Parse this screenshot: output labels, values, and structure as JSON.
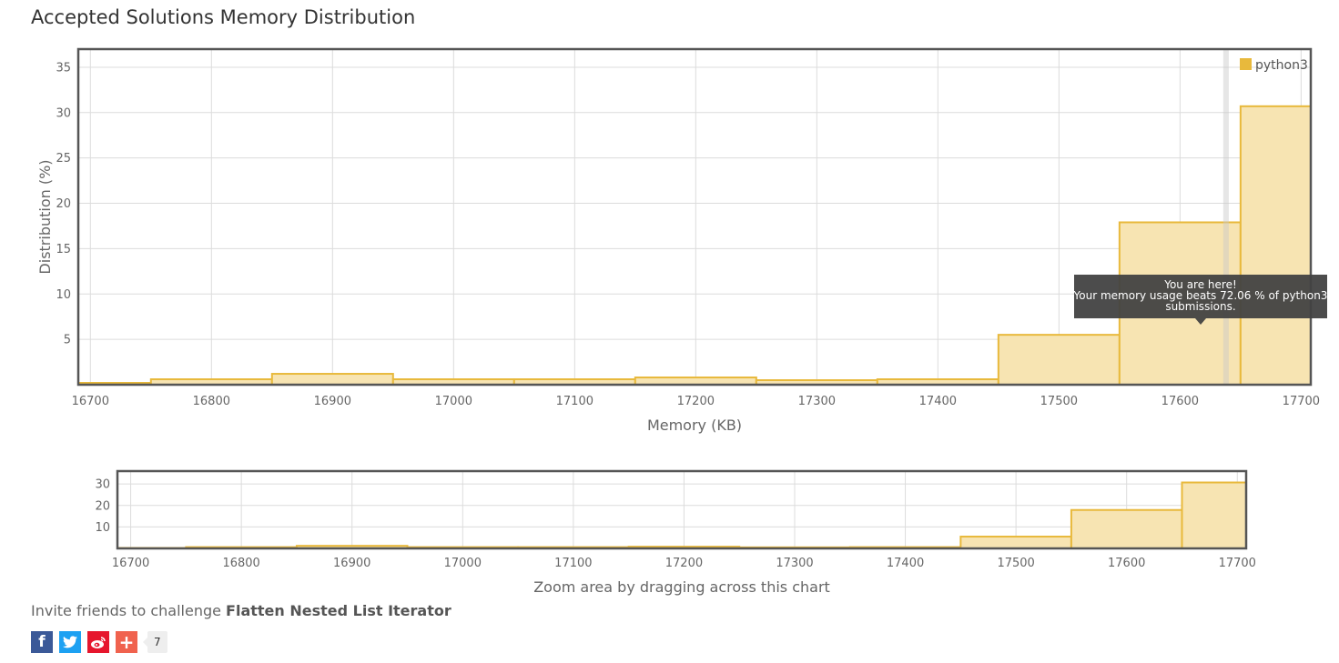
{
  "page": {
    "title": "Accepted Solutions Memory Distribution",
    "invite_prefix": "Invite friends to challenge ",
    "invite_problem": "Flatten Nested List Iterator",
    "share_count": "7",
    "share_buttons": [
      {
        "name": "facebook",
        "icon": "f",
        "color": "#3b5998"
      },
      {
        "name": "twitter",
        "icon": "twitter-bird",
        "color": "#1da1f2"
      },
      {
        "name": "weibo",
        "icon": "weibo-eye",
        "color": "#e6162d"
      },
      {
        "name": "more",
        "icon": "+",
        "color": "#f0624e"
      }
    ]
  },
  "chart_data": [
    {
      "type": "bar",
      "xlabel": "Memory (KB)",
      "ylabel": "Distribution (%)",
      "x_ticks": [
        16700,
        16800,
        16900,
        17000,
        17100,
        17200,
        17300,
        17400,
        17500,
        17600,
        17700
      ],
      "y_ticks": [
        5,
        10,
        15,
        20,
        25,
        30,
        35
      ],
      "xlim": [
        16690,
        17708
      ],
      "ylim": [
        0,
        37
      ],
      "grid": true,
      "legend_position": "top-right",
      "series": [
        {
          "name": "python3",
          "color": "#e8b93c",
          "fill": "#f7e4b2",
          "bins": [
            {
              "x0": 16650,
              "x1": 16750,
              "value": 0.2
            },
            {
              "x0": 16750,
              "x1": 16850,
              "value": 0.6
            },
            {
              "x0": 16850,
              "x1": 16950,
              "value": 1.2
            },
            {
              "x0": 16950,
              "x1": 17050,
              "value": 0.6
            },
            {
              "x0": 17050,
              "x1": 17150,
              "value": 0.6
            },
            {
              "x0": 17150,
              "x1": 17250,
              "value": 0.8
            },
            {
              "x0": 17250,
              "x1": 17350,
              "value": 0.5
            },
            {
              "x0": 17350,
              "x1": 17450,
              "value": 0.6
            },
            {
              "x0": 17450,
              "x1": 17550,
              "value": 5.5
            },
            {
              "x0": 17550,
              "x1": 17650,
              "value": 17.9
            },
            {
              "x0": 17650,
              "x1": 17750,
              "value": 30.7
            }
          ]
        }
      ],
      "marker_x": 17638,
      "tooltip": {
        "line1": "You are here!",
        "line2": "Your memory usage beats 72.06 % of python3",
        "line3": "submissions."
      }
    },
    {
      "type": "bar",
      "role": "zoom-navigator",
      "xlabel": "Zoom area by dragging across this chart",
      "x_ticks": [
        16700,
        16800,
        16900,
        17000,
        17100,
        17200,
        17300,
        17400,
        17500,
        17600,
        17700
      ],
      "y_ticks": [
        10,
        20,
        30
      ],
      "xlim": [
        16688,
        17708
      ],
      "ylim": [
        0,
        36
      ],
      "grid": true
    }
  ]
}
